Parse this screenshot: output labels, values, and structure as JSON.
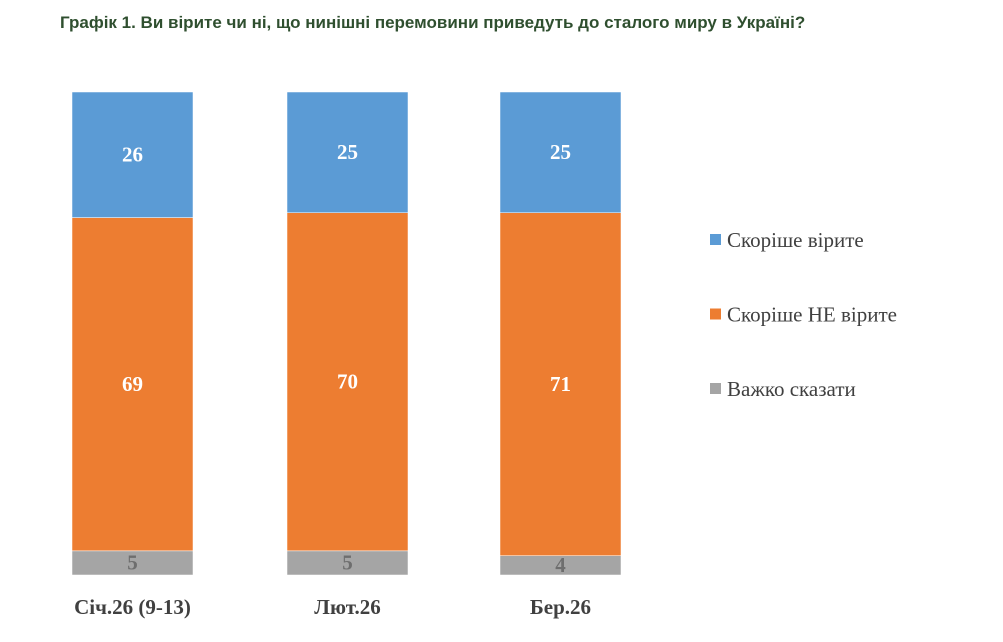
{
  "chart_data": {
    "type": "stacked-bar",
    "title": "Графік 1. Ви вірите чи ні, що нинішні перемовини приведуть до сталого миру в Україні?",
    "categories": [
      "Січ.26 (9-13)",
      "Лют.26",
      "Бер.26"
    ],
    "series": [
      {
        "name": "Скоріше вірите",
        "color": "#5b9bd5",
        "values": [
          26,
          25,
          25
        ]
      },
      {
        "name": "Скоріше НЕ вірите",
        "color": "#ed7d31",
        "values": [
          69,
          70,
          71
        ]
      },
      {
        "name": "Важко сказати",
        "color": "#a5a5a5",
        "values": [
          5,
          5,
          4
        ]
      }
    ]
  }
}
